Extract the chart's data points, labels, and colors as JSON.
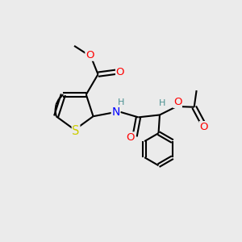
{
  "bg_color": "#ebebeb",
  "bond_color": "#000000",
  "bond_width": 1.5,
  "atom_colors": {
    "O": "#ff0000",
    "S": "#cccc00",
    "N": "#0000ff",
    "H": "#4a9090",
    "C": "#000000"
  },
  "font_size": 9.0
}
